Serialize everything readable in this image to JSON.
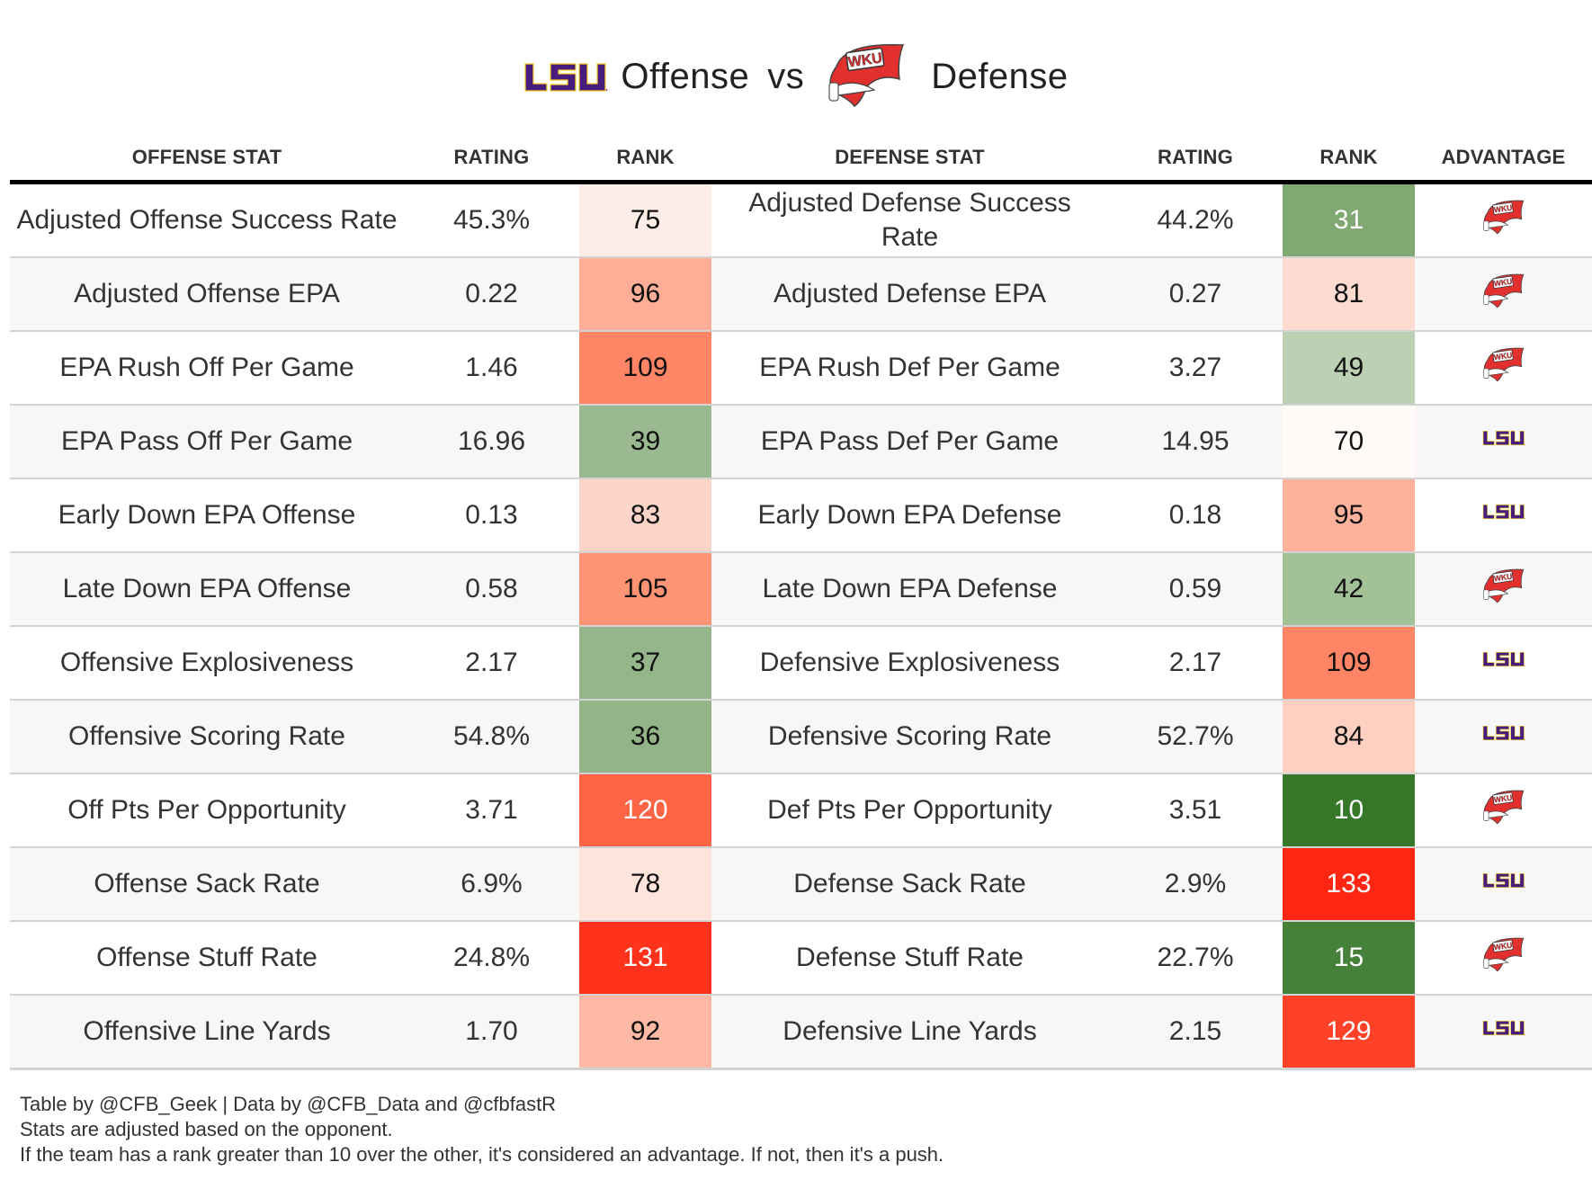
{
  "header": {
    "offense_team": "LSU",
    "offense_label": "Offense",
    "vs_label": "vs",
    "defense_team": "WKU",
    "defense_label": "Defense"
  },
  "columns": {
    "offense_stat": "OFFENSE STAT",
    "offense_rating": "RATING",
    "offense_rank": "RANK",
    "defense_stat": "DEFENSE STAT",
    "defense_rating": "RATING",
    "defense_rank": "RANK",
    "advantage": "ADVANTAGE"
  },
  "team_colors": {
    "LSU": "#461d7c",
    "LSU_gold": "#fdd023",
    "WKU": "#e2302f"
  },
  "rows": [
    {
      "off_stat": "Adjusted Offense Success Rate",
      "off_rating": "45.3%",
      "off_rank": "75",
      "off_rank_color": "#feede6",
      "off_rank_text": "dark",
      "def_stat": "Adjusted Defense Success Rate",
      "def_rating": "44.2%",
      "def_rank": "31",
      "def_rank_color": "#7fa872",
      "def_rank_text": "light",
      "advantage": "WKU"
    },
    {
      "off_stat": "Adjusted Offense EPA",
      "off_rating": "0.22",
      "off_rank": "96",
      "off_rank_color": "#feae96",
      "off_rank_text": "dark",
      "def_stat": "Adjusted Defense EPA",
      "def_rating": "0.27",
      "def_rank": "81",
      "def_rank_color": "#fedbd0",
      "def_rank_text": "dark",
      "advantage": "WKU"
    },
    {
      "off_stat": "EPA Rush Off Per Game",
      "off_rating": "1.46",
      "off_rank": "109",
      "off_rank_color": "#ff8566",
      "off_rank_text": "dark",
      "def_stat": "EPA Rush Def Per Game",
      "def_rating": "3.27",
      "def_rank": "49",
      "def_rank_color": "#bcd1b4",
      "def_rank_text": "dark",
      "advantage": "WKU"
    },
    {
      "off_stat": "EPA Pass Off Per Game",
      "off_rating": "16.96",
      "off_rank": "39",
      "off_rank_color": "#9bb991",
      "off_rank_text": "dark",
      "def_stat": "EPA Pass Def Per Game",
      "def_rating": "14.95",
      "def_rank": "70",
      "def_rank_color": "#fffaf7",
      "def_rank_text": "dark",
      "advantage": "LSU"
    },
    {
      "off_stat": "Early Down EPA Offense",
      "off_rating": "0.13",
      "off_rank": "83",
      "off_rank_color": "#fdd5c8",
      "off_rank_text": "dark",
      "def_stat": "Early Down EPA Defense",
      "def_rating": "0.18",
      "def_rank": "95",
      "def_rank_color": "#feb29b",
      "def_rank_text": "dark",
      "advantage": "LSU"
    },
    {
      "off_stat": "Late Down EPA Offense",
      "off_rating": "0.58",
      "off_rank": "105",
      "off_rank_color": "#fe9473",
      "off_rank_text": "dark",
      "def_stat": "Late Down EPA Defense",
      "def_rating": "0.59",
      "def_rank": "42",
      "def_rank_color": "#a3c196",
      "def_rank_text": "dark",
      "advantage": "WKU"
    },
    {
      "off_stat": "Offensive Explosiveness",
      "off_rating": "2.17",
      "off_rank": "37",
      "off_rank_color": "#95b68a",
      "off_rank_text": "dark",
      "def_stat": "Defensive Explosiveness",
      "def_rating": "2.17",
      "def_rank": "109",
      "def_rank_color": "#ff8566",
      "def_rank_text": "dark",
      "advantage": "LSU"
    },
    {
      "off_stat": "Offensive Scoring Rate",
      "off_rating": "54.8%",
      "off_rank": "36",
      "off_rank_color": "#93b486",
      "off_rank_text": "dark",
      "def_stat": "Defensive Scoring Rate",
      "def_rating": "52.7%",
      "def_rank": "84",
      "def_rank_color": "#fed0c1",
      "def_rank_text": "dark",
      "advantage": "LSU"
    },
    {
      "off_stat": "Off Pts Per Opportunity",
      "off_rating": "3.71",
      "off_rank": "120",
      "off_rank_color": "#ff6545",
      "off_rank_text": "light",
      "def_stat": "Def Pts Per Opportunity",
      "def_rating": "3.51",
      "def_rank": "10",
      "def_rank_color": "#36772a",
      "def_rank_text": "light",
      "advantage": "WKU"
    },
    {
      "off_stat": "Offense Sack Rate",
      "off_rating": "6.9%",
      "off_rank": "78",
      "off_rank_color": "#fee4da",
      "off_rank_text": "dark",
      "def_stat": "Defense Sack Rate",
      "def_rating": "2.9%",
      "def_rank": "133",
      "def_rank_color": "#ff2714",
      "def_rank_text": "light",
      "advantage": "LSU"
    },
    {
      "off_stat": "Offense Stuff Rate",
      "off_rating": "24.8%",
      "off_rank": "131",
      "off_rank_color": "#ff321c",
      "off_rank_text": "light",
      "def_stat": "Defense Stuff Rate",
      "def_rating": "22.7%",
      "def_rank": "15",
      "def_rank_color": "#468139",
      "def_rank_text": "light",
      "advantage": "WKU"
    },
    {
      "off_stat": "Offensive Line Yards",
      "off_rating": "1.70",
      "off_rank": "92",
      "off_rank_color": "#feb9a4",
      "off_rank_text": "dark",
      "def_stat": "Defensive Line Yards",
      "def_rating": "2.15",
      "def_rank": "129",
      "def_rank_color": "#ff4227",
      "def_rank_text": "light",
      "advantage": "LSU"
    }
  ],
  "footer": {
    "line1": "Table by @CFB_Geek | Data by @CFB_Data and @cfbfastR",
    "line2": "Stats are adjusted based on the opponent.",
    "line3": "If the team has a rank greater than 10 over the other, it's considered an advantage. If not, then it's a push."
  }
}
